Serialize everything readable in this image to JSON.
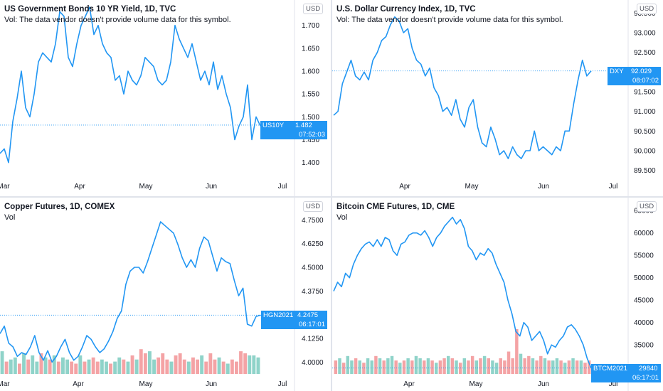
{
  "panes": [
    {
      "title": "US Government Bonds 10 YR Yield, 1D, TVC",
      "subtitle": "Vol: The data vendor doesn't provide volume data for this symbol.",
      "currency": "USD",
      "ticker": "US10Y",
      "last_value": "1.482",
      "countdown": "07:52:03",
      "chart_data": {
        "type": "line",
        "x_labels": [
          "Mar",
          "Apr",
          "May",
          "Jun",
          "Jul"
        ],
        "y_ticks": [
          "1.400",
          "1.450",
          "1.500",
          "1.550",
          "1.600",
          "1.650",
          "1.700"
        ],
        "ylim": [
          1.37,
          1.74
        ],
        "last": 1.482,
        "series": [
          {
            "values": [
              1.42,
              1.43,
              1.4,
              1.49,
              1.54,
              1.6,
              1.52,
              1.5,
              1.55,
              1.62,
              1.64,
              1.63,
              1.62,
              1.66,
              1.73,
              1.72,
              1.63,
              1.61,
              1.66,
              1.7,
              1.72,
              1.74,
              1.68,
              1.7,
              1.66,
              1.64,
              1.63,
              1.58,
              1.59,
              1.55,
              1.6,
              1.58,
              1.57,
              1.59,
              1.63,
              1.62,
              1.61,
              1.58,
              1.57,
              1.58,
              1.62,
              1.7,
              1.67,
              1.65,
              1.63,
              1.66,
              1.62,
              1.58,
              1.6,
              1.57,
              1.62,
              1.56,
              1.59,
              1.55,
              1.52,
              1.45,
              1.48,
              1.5,
              1.57,
              1.45,
              1.5,
              1.48
            ]
          }
        ]
      }
    },
    {
      "title": "U.S. Dollar Currency Index, 1D, TVC",
      "subtitle": "Vol: The data vendor doesn't provide volume data for this symbol.",
      "currency": "USD",
      "ticker": "DXY",
      "last_value": "92.029",
      "countdown": "08:07:02",
      "chart_data": {
        "type": "line",
        "x_labels": [
          "Apr",
          "May",
          "Jun",
          "Jul"
        ],
        "y_ticks": [
          "89.500",
          "90.000",
          "90.500",
          "91.000",
          "91.500",
          "92.000",
          "92.500",
          "93.000",
          "93.500"
        ],
        "ylim": [
          89.35,
          93.65
        ],
        "last": 92.029,
        "series": [
          {
            "values": [
              90.9,
              91.0,
              91.7,
              92.0,
              92.3,
              91.9,
              91.8,
              92.0,
              91.8,
              92.3,
              92.5,
              92.8,
              92.9,
              93.2,
              93.4,
              93.3,
              93.0,
              93.1,
              92.6,
              92.3,
              92.2,
              91.9,
              92.1,
              91.6,
              91.4,
              91.0,
              91.1,
              90.9,
              91.3,
              90.8,
              90.6,
              91.1,
              91.3,
              90.6,
              90.2,
              90.1,
              90.6,
              90.3,
              89.9,
              90.0,
              89.8,
              90.1,
              89.9,
              89.8,
              90.0,
              90.0,
              90.5,
              90.0,
              90.1,
              90.0,
              89.9,
              90.1,
              90.0,
              90.5,
              90.5,
              91.2,
              91.8,
              92.3,
              91.9,
              92.029
            ]
          }
        ]
      }
    },
    {
      "title": "Copper Futures, 1D, COMEX",
      "subtitle": "Vol",
      "currency": "USD",
      "ticker": "HGN2021",
      "last_value": "4.2475",
      "countdown": "06:17:01",
      "chart_data": {
        "type": "line",
        "x_labels": [
          "Mar",
          "Apr",
          "May",
          "Jun",
          "Jul"
        ],
        "y_ticks": [
          "4.0000",
          "4.1250",
          "4.2500",
          "4.3750",
          "4.5000",
          "4.6250",
          "4.7500"
        ],
        "ylim": [
          3.93,
          4.83
        ],
        "last": 4.2475,
        "series": [
          {
            "values": [
              4.15,
              4.19,
              4.1,
              4.08,
              4.03,
              4.05,
              4.04,
              4.08,
              4.14,
              4.05,
              4.01,
              4.06,
              4.0,
              4.03,
              4.08,
              4.12,
              4.05,
              4.01,
              4.03,
              4.08,
              4.14,
              4.12,
              4.08,
              4.05,
              4.07,
              4.11,
              4.16,
              4.23,
              4.27,
              4.41,
              4.48,
              4.5,
              4.5,
              4.47,
              4.53,
              4.6,
              4.67,
              4.74,
              4.72,
              4.7,
              4.68,
              4.62,
              4.55,
              4.5,
              4.54,
              4.5,
              4.6,
              4.66,
              4.64,
              4.56,
              4.48,
              4.55,
              4.53,
              4.52,
              4.43,
              4.35,
              4.39,
              4.2,
              4.19,
              4.24,
              4.2475
            ]
          }
        ],
        "volume": {
          "values": [
            0.55,
            0.3,
            0.35,
            0.4,
            0.25,
            0.5,
            0.35,
            0.45,
            0.3,
            0.5,
            0.4,
            0.35,
            0.45,
            0.3,
            0.4,
            0.35,
            0.3,
            0.25,
            0.45,
            0.3,
            0.35,
            0.4,
            0.3,
            0.35,
            0.3,
            0.25,
            0.3,
            0.4,
            0.35,
            0.3,
            0.45,
            0.35,
            0.6,
            0.5,
            0.55,
            0.35,
            0.4,
            0.5,
            0.35,
            0.3,
            0.45,
            0.5,
            0.35,
            0.3,
            0.4,
            0.35,
            0.45,
            0.3,
            0.5,
            0.35,
            0.4,
            0.3,
            0.25,
            0.35,
            0.3,
            0.55,
            0.5,
            0.45,
            0.45,
            0.4
          ],
          "up": [
            true,
            false,
            true,
            true,
            false,
            true,
            false,
            true,
            true,
            false,
            true,
            false,
            true,
            false,
            true,
            true,
            false,
            false,
            true,
            false,
            true,
            false,
            false,
            true,
            true,
            false,
            true,
            true,
            false,
            true,
            false,
            true,
            false,
            false,
            true,
            true,
            false,
            false,
            false,
            true,
            false,
            false,
            false,
            true,
            false,
            false,
            true,
            false,
            false,
            false,
            true,
            false,
            true,
            false,
            false,
            false,
            false,
            true,
            true,
            true
          ]
        }
      }
    },
    {
      "title": "Bitcoin CME Futures, 1D, CME",
      "subtitle": "Vol",
      "currency": "USD",
      "ticker": "BTCM2021",
      "last_value": "29840",
      "countdown": "06:17:01",
      "chart_data": {
        "type": "line",
        "x_labels": [
          "Apr",
          "May",
          "Jun",
          "Jul"
        ],
        "y_ticks": [
          "35000",
          "40000",
          "45000",
          "50000",
          "55000",
          "60000",
          "65000"
        ],
        "ylim": [
          28200,
          66300
        ],
        "last": 29840,
        "series": [
          {
            "values": [
              47000,
              49000,
              48000,
              51000,
              50000,
              53000,
              55000,
              56500,
              57500,
              58000,
              57000,
              58500,
              57000,
              59000,
              58500,
              56000,
              55000,
              57500,
              58000,
              59500,
              60000,
              60000,
              59500,
              60500,
              59000,
              57000,
              59000,
              60000,
              61500,
              62500,
              63500,
              62000,
              63000,
              61000,
              57000,
              56000,
              54000,
              55500,
              55000,
              56500,
              55500,
              53000,
              51000,
              49000,
              45000,
              42000,
              38000,
              37000,
              40000,
              39000,
              36000,
              37000,
              38000,
              36000,
              33000,
              35000,
              34500,
              36000,
              37000,
              39000,
              39500,
              38500,
              37000,
              35000,
              32000,
              29840
            ]
          }
        ],
        "volume": {
          "values": [
            0.3,
            0.35,
            0.25,
            0.4,
            0.3,
            0.35,
            0.3,
            0.25,
            0.35,
            0.3,
            0.4,
            0.35,
            0.3,
            0.35,
            0.4,
            0.3,
            0.25,
            0.3,
            0.35,
            0.3,
            0.4,
            0.35,
            0.3,
            0.35,
            0.3,
            0.25,
            0.3,
            0.35,
            0.4,
            0.35,
            0.3,
            0.25,
            0.35,
            0.3,
            0.4,
            0.3,
            0.35,
            0.4,
            0.35,
            0.3,
            0.25,
            0.35,
            0.3,
            0.5,
            0.35,
            1.0,
            0.45,
            0.35,
            0.4,
            0.35,
            0.3,
            0.4,
            0.35,
            0.3,
            0.3,
            0.35,
            0.3,
            0.25,
            0.3,
            0.35,
            0.3,
            0.3,
            0.25,
            0.3
          ],
          "up": [
            false,
            true,
            false,
            true,
            true,
            false,
            true,
            false,
            true,
            true,
            false,
            true,
            false,
            true,
            true,
            false,
            true,
            false,
            true,
            false,
            true,
            true,
            false,
            true,
            false,
            true,
            false,
            false,
            true,
            false,
            true,
            false,
            true,
            false,
            false,
            true,
            false,
            true,
            false,
            true,
            true,
            false,
            false,
            false,
            false,
            false,
            true,
            false,
            false,
            true,
            false,
            false,
            true,
            false,
            true,
            true,
            false,
            true,
            false,
            true,
            false,
            true,
            false,
            false
          ]
        }
      }
    }
  ]
}
